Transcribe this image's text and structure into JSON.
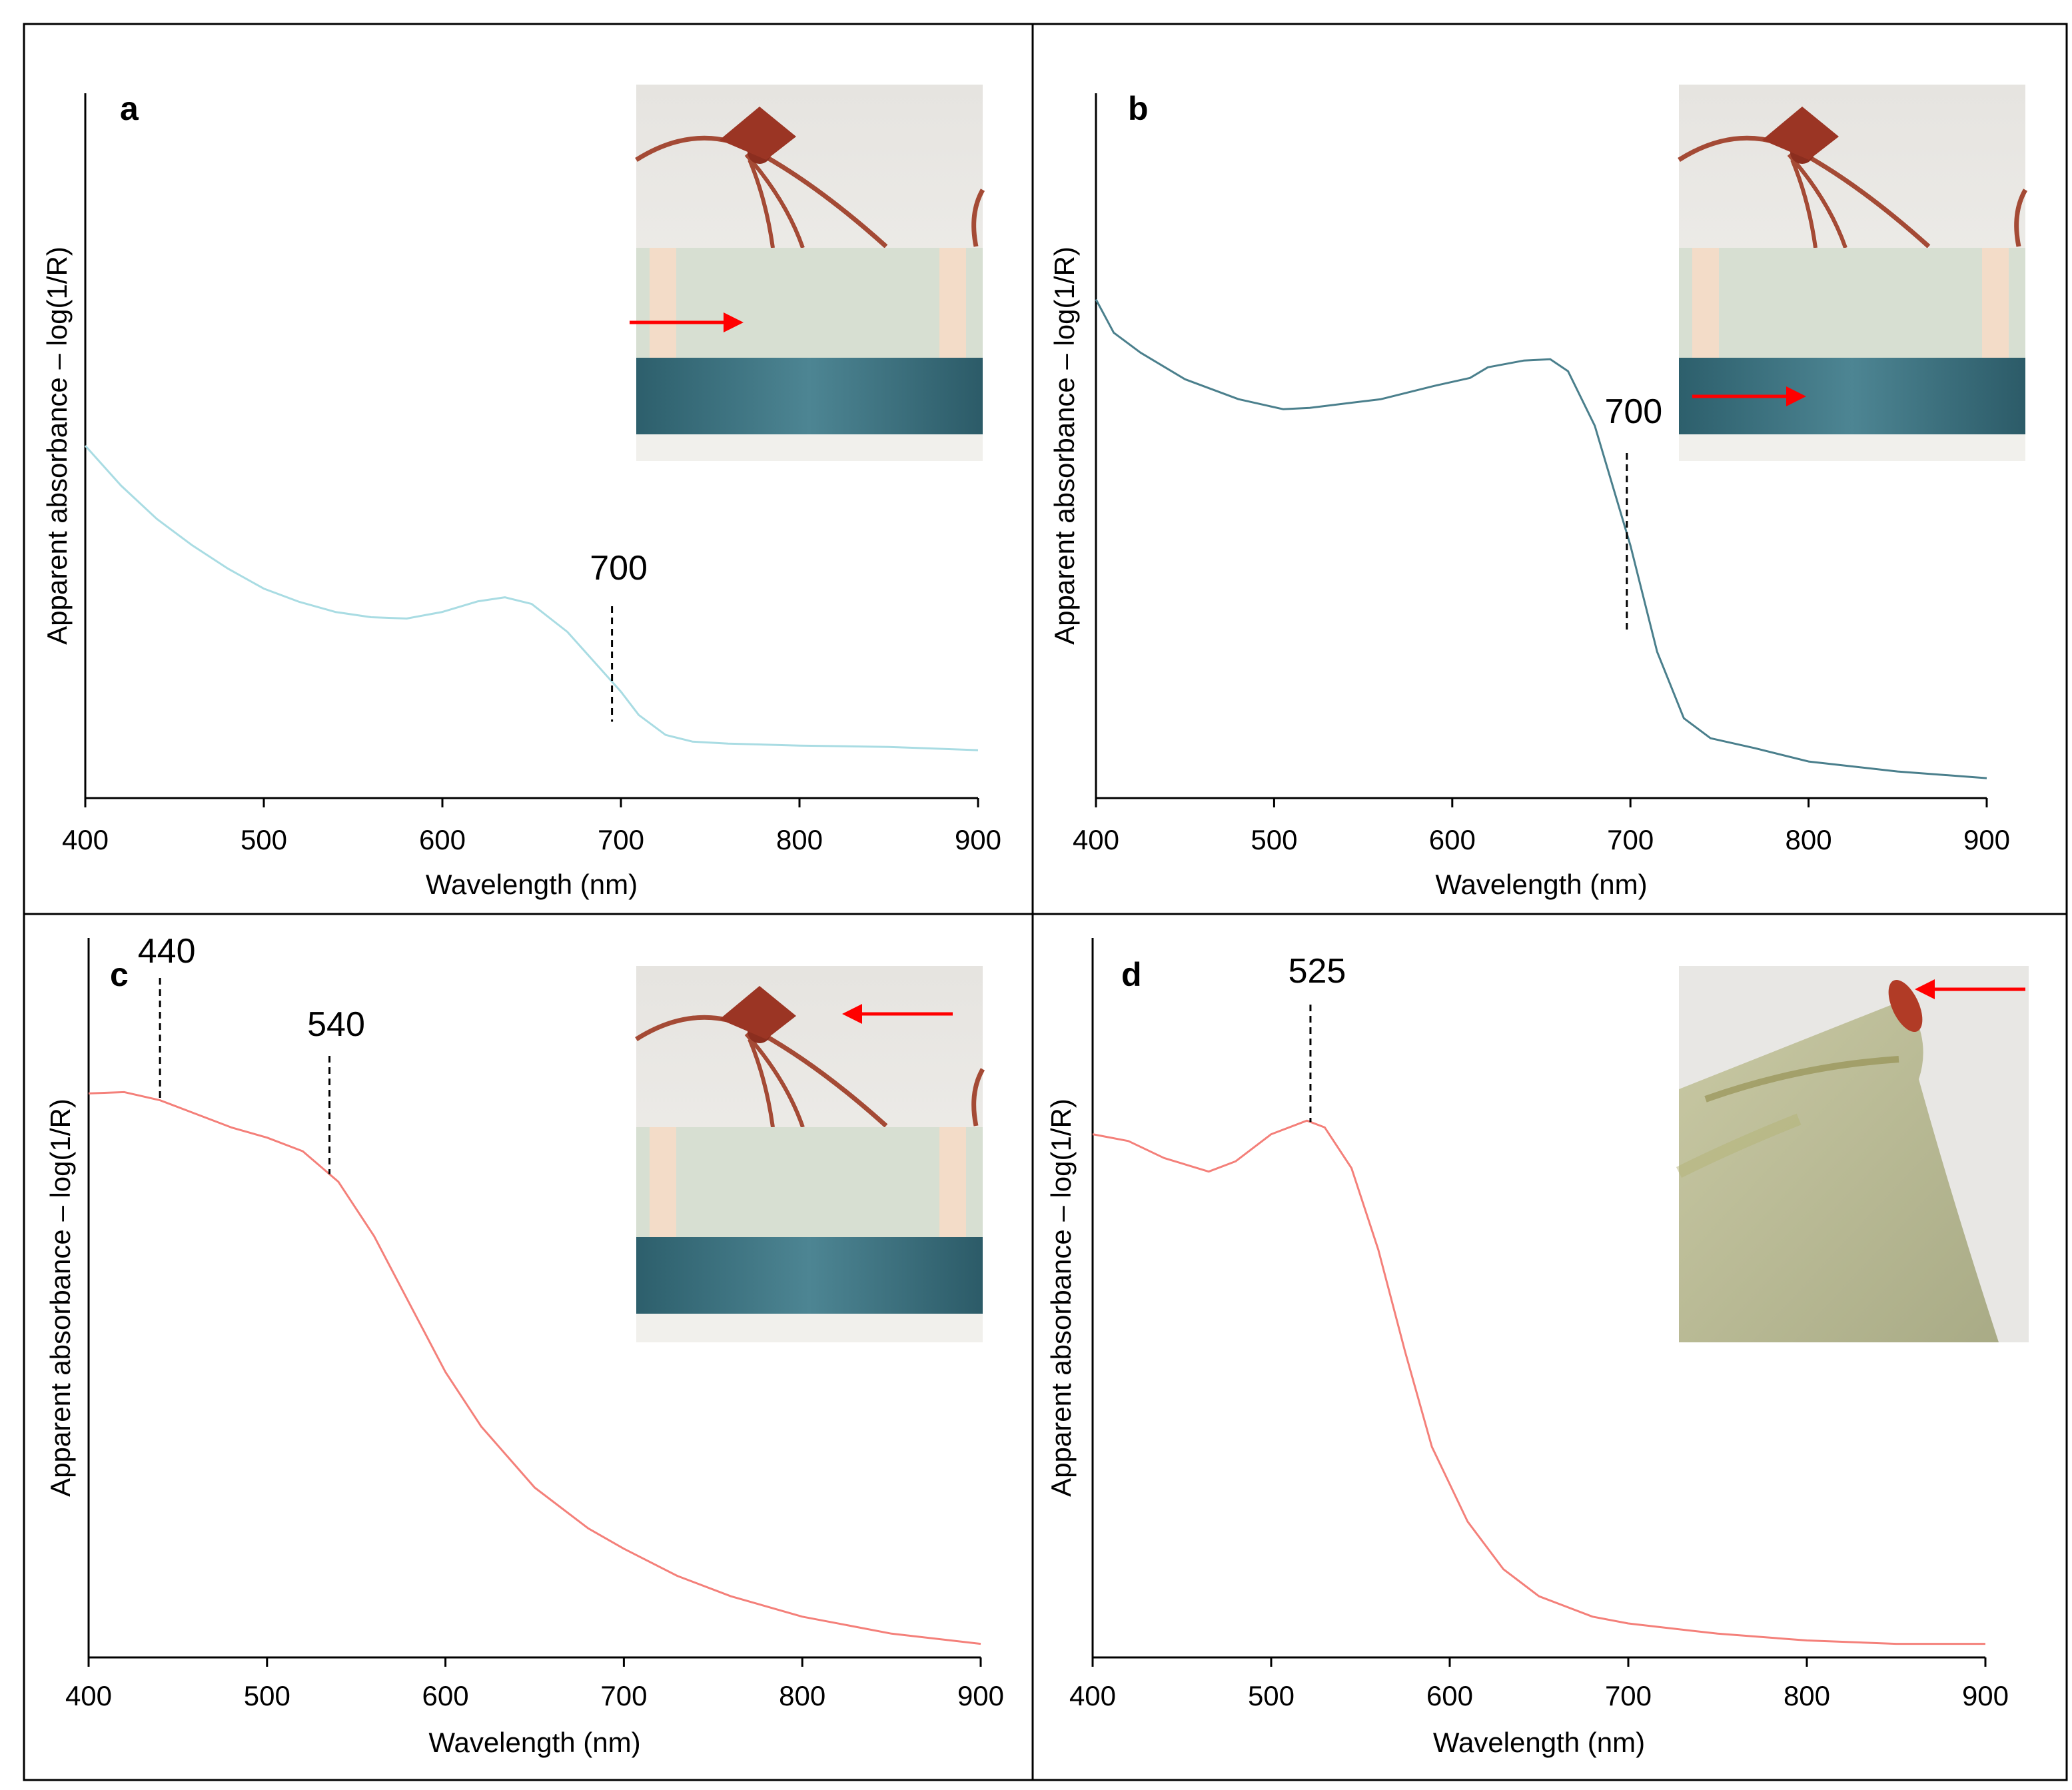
{
  "chart_data": [
    {
      "panel": "a",
      "type": "line",
      "xlabel": "Wavelength (nm)",
      "ylabel": "Apparent absorbance – log(1/R)",
      "xlim": [
        400,
        900
      ],
      "ylim": [
        0,
        1
      ],
      "xticks": [
        "400",
        "500",
        "600",
        "700",
        "800",
        "900"
      ],
      "line_color": "#a9dce3",
      "series": [
        {
          "name": "a",
          "x": [
            400,
            420,
            440,
            460,
            480,
            500,
            520,
            540,
            560,
            580,
            600,
            620,
            635,
            650,
            670,
            690,
            700,
            710,
            725,
            740,
            760,
            800,
            850,
            900
          ],
          "y": [
            0.53,
            0.47,
            0.42,
            0.38,
            0.345,
            0.315,
            0.295,
            0.28,
            0.272,
            0.27,
            0.28,
            0.296,
            0.302,
            0.292,
            0.25,
            0.19,
            0.16,
            0.125,
            0.095,
            0.085,
            0.082,
            0.079,
            0.077,
            0.072
          ]
        }
      ],
      "annotations": [
        {
          "label": "700",
          "x": 695
        }
      ],
      "inset_arrow": "right"
    },
    {
      "panel": "b",
      "type": "line",
      "xlabel": "Wavelength (nm)",
      "ylabel": "Apparent absorbance – log(1/R)",
      "xlim": [
        400,
        900
      ],
      "ylim": [
        0,
        1
      ],
      "xticks": [
        "400",
        "500",
        "600",
        "700",
        "800",
        "900"
      ],
      "line_color": "#4a7f8c",
      "series": [
        {
          "name": "b",
          "x": [
            400,
            410,
            425,
            450,
            480,
            505,
            520,
            560,
            590,
            610,
            620,
            640,
            655,
            665,
            680,
            700,
            715,
            730,
            745,
            770,
            800,
            850,
            900
          ],
          "y": [
            0.75,
            0.7,
            0.67,
            0.63,
            0.6,
            0.585,
            0.587,
            0.6,
            0.62,
            0.632,
            0.648,
            0.658,
            0.66,
            0.642,
            0.56,
            0.38,
            0.22,
            0.12,
            0.09,
            0.075,
            0.055,
            0.04,
            0.03
          ]
        }
      ],
      "annotations": [
        {
          "label": "700",
          "x": 698
        }
      ],
      "inset_arrow": "right"
    },
    {
      "panel": "c",
      "type": "line",
      "xlabel": "Wavelength (nm)",
      "ylabel": "Apparent absorbance – log(1/R)",
      "xlim": [
        400,
        900
      ],
      "ylim": [
        0,
        1
      ],
      "xticks": [
        "400",
        "500",
        "600",
        "700",
        "800",
        "900"
      ],
      "line_color": "#f4807a",
      "series": [
        {
          "name": "c",
          "x": [
            400,
            420,
            440,
            460,
            480,
            500,
            520,
            540,
            560,
            580,
            600,
            620,
            650,
            680,
            700,
            730,
            760,
            800,
            850,
            900
          ],
          "y": [
            0.83,
            0.832,
            0.82,
            0.8,
            0.78,
            0.765,
            0.745,
            0.7,
            0.62,
            0.52,
            0.42,
            0.34,
            0.25,
            0.19,
            0.16,
            0.12,
            0.09,
            0.06,
            0.035,
            0.02
          ]
        }
      ],
      "annotations": [
        {
          "label": "440",
          "x": 440
        },
        {
          "label": "540",
          "x": 535
        }
      ],
      "inset_arrow": "left"
    },
    {
      "panel": "d",
      "type": "line",
      "xlabel": "Wavelength (nm)",
      "ylabel": "Apparent absorbance – log(1/R)",
      "xlim": [
        400,
        900
      ],
      "ylim": [
        0,
        1
      ],
      "xticks": [
        "400",
        "500",
        "600",
        "700",
        "800",
        "900"
      ],
      "line_color": "#f4807a",
      "series": [
        {
          "name": "d",
          "x": [
            400,
            420,
            440,
            465,
            480,
            500,
            520,
            530,
            545,
            560,
            575,
            590,
            610,
            630,
            650,
            680,
            700,
            750,
            800,
            850,
            900
          ],
          "y": [
            0.77,
            0.76,
            0.735,
            0.715,
            0.73,
            0.77,
            0.79,
            0.78,
            0.72,
            0.6,
            0.45,
            0.31,
            0.2,
            0.13,
            0.09,
            0.06,
            0.05,
            0.035,
            0.025,
            0.02,
            0.02
          ]
        }
      ],
      "annotations": [
        {
          "label": "525",
          "x": 522
        }
      ],
      "inset_arrow": "left"
    }
  ],
  "panel_labels": [
    "a",
    "b",
    "c",
    "d"
  ]
}
